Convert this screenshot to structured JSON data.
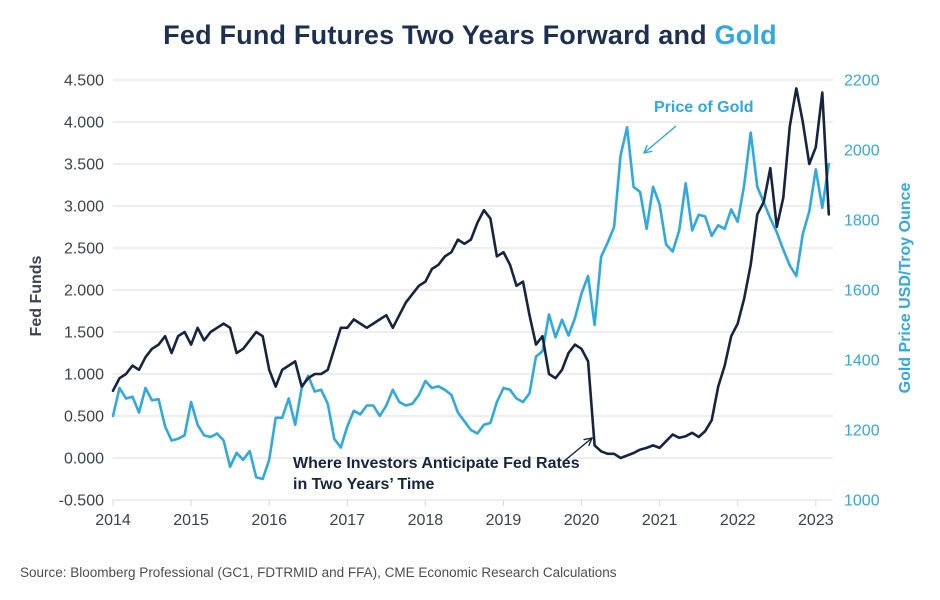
{
  "title": {
    "main": "Fed Fund Futures Two Years Forward and ",
    "highlight": "Gold"
  },
  "colors": {
    "navy": "#16253f",
    "title_navy": "#1d2f52",
    "blue": "#2fa9e0",
    "grid": "#dcdcdc",
    "tick_mark": "#d9d9d9",
    "axis_text": "#39434f",
    "source_text": "#4d4d4d"
  },
  "annotations": {
    "gold_label": "Price of Gold",
    "fed_label_line1": "Where Investors Anticipate Fed Rates",
    "fed_label_line2": "in Two Years’ Time"
  },
  "source": "Source: Bloomberg Professional (GC1, FDTRMID and FFA), CME Economic Research Calculations",
  "chart_data": {
    "type": "line",
    "title": "Fed Fund Futures Two Years Forward and Gold",
    "grid": true,
    "x_domain": [
      2014,
      2023.22
    ],
    "x_unit": "year",
    "points_start_year": 2014,
    "points_per_year": 12,
    "x_axis_ticks": [
      "2014",
      "2015",
      "2016",
      "2017",
      "2018",
      "2019",
      "2020",
      "2021",
      "2022",
      "2023"
    ],
    "left_axis": {
      "label": "Fed Funds",
      "range": [
        -0.5,
        4.5
      ],
      "ticks": [
        "4.500",
        "4.000",
        "3.500",
        "3.000",
        "2.500",
        "2.000",
        "1.500",
        "1.000",
        "0.500",
        "0.000",
        "-0.500"
      ]
    },
    "right_axis": {
      "label": "Gold Price USD/Troy Ounce",
      "range": [
        1000,
        2200
      ],
      "ticks": [
        "2200",
        "2000",
        "1800",
        "1600",
        "1400",
        "1200",
        "1000"
      ]
    },
    "series": [
      {
        "name": "Price of Gold",
        "axis": "right",
        "color": "#2fa9e0",
        "values": [
          1240,
          1320,
          1290,
          1295,
          1250,
          1320,
          1285,
          1288,
          1210,
          1170,
          1175,
          1185,
          1280,
          1215,
          1185,
          1180,
          1190,
          1170,
          1095,
          1135,
          1115,
          1140,
          1065,
          1060,
          1115,
          1235,
          1235,
          1290,
          1215,
          1320,
          1355,
          1310,
          1315,
          1275,
          1175,
          1150,
          1210,
          1255,
          1245,
          1270,
          1270,
          1240,
          1270,
          1315,
          1280,
          1270,
          1275,
          1300,
          1340,
          1320,
          1325,
          1315,
          1300,
          1250,
          1225,
          1200,
          1190,
          1215,
          1220,
          1280,
          1320,
          1315,
          1290,
          1280,
          1305,
          1410,
          1425,
          1530,
          1465,
          1515,
          1470,
          1520,
          1590,
          1640,
          1500,
          1695,
          1735,
          1780,
          1985,
          2065,
          1895,
          1880,
          1775,
          1895,
          1845,
          1730,
          1710,
          1770,
          1905,
          1770,
          1815,
          1810,
          1755,
          1785,
          1775,
          1830,
          1795,
          1900,
          2050,
          1895,
          1850,
          1805,
          1765,
          1715,
          1670,
          1640,
          1760,
          1825,
          1945,
          1835,
          1960
        ]
      },
      {
        "name": "Fed Fund Futures Two Years Forward",
        "axis": "left",
        "color": "#16253f",
        "values": [
          0.8,
          0.95,
          1.0,
          1.1,
          1.05,
          1.2,
          1.3,
          1.35,
          1.45,
          1.25,
          1.45,
          1.5,
          1.35,
          1.55,
          1.4,
          1.5,
          1.55,
          1.6,
          1.55,
          1.25,
          1.3,
          1.4,
          1.5,
          1.45,
          1.05,
          0.85,
          1.05,
          1.1,
          1.15,
          0.85,
          0.95,
          1.0,
          1.0,
          1.05,
          1.3,
          1.55,
          1.55,
          1.65,
          1.6,
          1.55,
          1.6,
          1.65,
          1.7,
          1.55,
          1.7,
          1.85,
          1.95,
          2.05,
          2.1,
          2.25,
          2.3,
          2.4,
          2.45,
          2.6,
          2.55,
          2.6,
          2.8,
          2.95,
          2.85,
          2.4,
          2.45,
          2.3,
          2.05,
          2.1,
          1.7,
          1.35,
          1.45,
          1.0,
          0.95,
          1.05,
          1.25,
          1.35,
          1.3,
          1.15,
          0.15,
          0.08,
          0.05,
          0.05,
          0.0,
          0.03,
          0.06,
          0.1,
          0.12,
          0.15,
          0.12,
          0.2,
          0.28,
          0.24,
          0.26,
          0.3,
          0.25,
          0.32,
          0.45,
          0.85,
          1.1,
          1.45,
          1.6,
          1.9,
          2.3,
          2.9,
          3.05,
          3.45,
          2.75,
          3.1,
          3.95,
          4.4,
          4.0,
          3.5,
          3.7,
          4.35,
          2.9
        ]
      }
    ]
  }
}
